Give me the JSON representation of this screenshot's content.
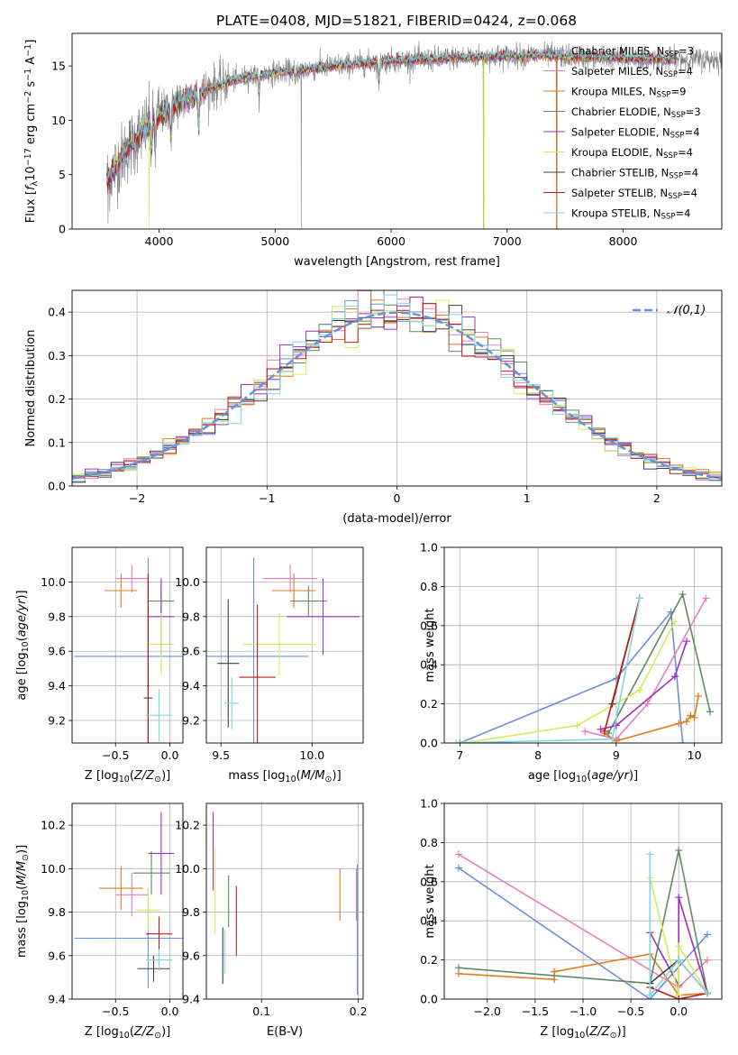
{
  "figure_title": "PLATE=0408, MJD=51821, FIBERID=0424, z=0.068",
  "colors": {
    "Chabrier MILES": "#6a8fdc",
    "Salpeter MILES": "#e87ec0",
    "Kroupa MILES": "#e07b20",
    "Chabrier ELODIE": "#5f8a62",
    "Salpeter ELODIE": "#9b30c0",
    "Kroupa ELODIE": "#d3ec5a",
    "Chabrier STELIB": "#404040",
    "Salpeter STELIB": "#c01818",
    "Kroupa STELIB": "#7ed8e0",
    "data": "#808080",
    "gaussian": "#6a8fdc",
    "grid": "#b0b0b0"
  },
  "chart_data": [
    {
      "id": "spectrum",
      "type": "line",
      "title": "PLATE=0408, MJD=51821, FIBERID=0424, z=0.068",
      "xlabel": "wavelength [Angstrom, rest frame]",
      "ylabel": "Flux [f_λ 10^-17 erg cm^-2 s^-1 A^-1]",
      "xlim": [
        3250,
        8850
      ],
      "ylim": [
        0,
        18
      ],
      "xticks": [
        4000,
        5000,
        6000,
        7000,
        8000
      ],
      "yticks": [
        0,
        5,
        10,
        15
      ],
      "grid": false,
      "legend_position": "lower right",
      "legend": [
        {
          "model": "Chabrier MILES",
          "label": "Chabrier MILES, N",
          "sub": "SSP",
          "suffix": "=3"
        },
        {
          "model": "Salpeter MILES",
          "label": "Salpeter MILES, N",
          "sub": "SSP",
          "suffix": "=4"
        },
        {
          "model": "Kroupa MILES",
          "label": "Kroupa MILES, N",
          "sub": "SSP",
          "suffix": "=9"
        },
        {
          "model": "Chabrier ELODIE",
          "label": "Chabrier ELODIE, N",
          "sub": "SSP",
          "suffix": "=3"
        },
        {
          "model": "Salpeter ELODIE",
          "label": "Salpeter ELODIE, N",
          "sub": "SSP",
          "suffix": "=4"
        },
        {
          "model": "Kroupa ELODIE",
          "label": "Kroupa ELODIE, N",
          "sub": "SSP",
          "suffix": "=4"
        },
        {
          "model": "Chabrier STELIB",
          "label": "Chabrier STELIB, N",
          "sub": "SSP",
          "suffix": "=4"
        },
        {
          "model": "Salpeter STELIB",
          "label": "Salpeter STELIB, N",
          "sub": "SSP",
          "suffix": "=4"
        },
        {
          "model": "Kroupa STELIB",
          "label": "Kroupa STELIB, N",
          "sub": "SSP",
          "suffix": "=4"
        }
      ],
      "continuum": {
        "x": [
          3550,
          3700,
          3900,
          4000,
          4200,
          4400,
          4600,
          4800,
          5000,
          5200,
          5500,
          5800,
          6000,
          6300,
          6600,
          6900,
          7200,
          7500,
          7800,
          8100,
          8400,
          8700,
          8850
        ],
        "y": [
          4.5,
          7.0,
          9.5,
          10.5,
          11.8,
          12.8,
          13.6,
          14.1,
          14.4,
          14.6,
          15.0,
          15.3,
          15.5,
          15.6,
          15.8,
          15.9,
          16.0,
          15.9,
          15.8,
          15.7,
          15.6,
          15.6,
          15.6
        ]
      },
      "data_range": [
        3550,
        8850
      ],
      "model_range": [
        3550,
        8450
      ],
      "absorption": [
        {
          "x": 3934,
          "depth": 0.3
        },
        {
          "x": 3968,
          "depth": 0.25
        },
        {
          "x": 4102,
          "depth": 0.25
        },
        {
          "x": 4340,
          "depth": 0.2
        },
        {
          "x": 4861,
          "depth": 0.12
        },
        {
          "x": 5175,
          "depth": 0.06
        },
        {
          "x": 5895,
          "depth": 0.12
        }
      ],
      "data_spikes": [
        {
          "x": 5225,
          "y": 0
        },
        {
          "x": 6795,
          "y": 0
        },
        {
          "x": 7425,
          "y": 0
        },
        {
          "x": 3560,
          "y": 0.5
        }
      ],
      "model_spikes": [
        {
          "model": "Kroupa ELODIE",
          "x": 3915,
          "y": 0
        },
        {
          "model": "Kroupa ELODIE",
          "x": 6800,
          "y": 0
        },
        {
          "model": "Kroupa MILES",
          "x": 7428,
          "y": 0
        }
      ]
    },
    {
      "id": "residuals",
      "type": "histogram",
      "xlabel": "(data-model)/error",
      "ylabel": "Normed distribution",
      "xlim": [
        -2.5,
        2.5
      ],
      "ylim": [
        0,
        0.45
      ],
      "xticks": [
        -2,
        -1,
        0,
        1,
        2
      ],
      "yticks": [
        0.0,
        0.1,
        0.2,
        0.3,
        0.4
      ],
      "grid": true,
      "legend": [
        {
          "label": "𝒩(0,1)",
          "style": "dashed"
        }
      ],
      "legend_position": "upper right",
      "bin_start": -2.5,
      "bin_width": 0.1
    },
    {
      "id": "Z_vs_age",
      "type": "errorbar",
      "xlabel": "Z [log10(Z/Z☉)]",
      "ylabel": "age [log10(age/yr)]",
      "xlim": [
        -0.9,
        0.12
      ],
      "ylim": [
        9.07,
        10.2
      ],
      "xticks": [
        -0.5,
        0.0
      ],
      "yticks": [
        9.2,
        9.4,
        9.6,
        9.8,
        10.0
      ],
      "grid": true,
      "points": [
        {
          "model": "Chabrier MILES",
          "x": -0.2,
          "xerr": 0.68,
          "y": 9.57,
          "yerr": 0.57
        },
        {
          "model": "Salpeter MILES",
          "x": -0.35,
          "xerr": 0.15,
          "y": 10.02,
          "yerr": 0.08
        },
        {
          "model": "Kroupa MILES",
          "x": -0.45,
          "xerr": 0.15,
          "y": 9.95,
          "yerr": 0.1
        },
        {
          "model": "Chabrier ELODIE",
          "x": -0.08,
          "xerr": 0.12,
          "y": 9.89,
          "yerr": 0.09
        },
        {
          "model": "Salpeter ELODIE",
          "x": -0.08,
          "xerr": 0.12,
          "y": 9.8,
          "yerr": 0.22
        },
        {
          "model": "Kroupa ELODIE",
          "x": -0.08,
          "xerr": 0.12,
          "y": 9.64,
          "yerr": 0.18
        },
        {
          "model": "Chabrier STELIB",
          "x": -0.2,
          "xerr": 0.04,
          "y": 9.33,
          "yerr": 0.7
        },
        {
          "model": "Salpeter STELIB",
          "x": -0.2,
          "xerr": 0.01,
          "y": 9.4,
          "yerr": 0.65
        },
        {
          "model": "Kroupa STELIB",
          "x": -0.1,
          "xerr": 0.12,
          "y": 9.23,
          "yerr": 0.15
        }
      ]
    },
    {
      "id": "mass_vs_age",
      "type": "errorbar",
      "xlabel": "mass [log10(M/M☉)]",
      "ylabel": "",
      "xlim": [
        9.42,
        10.28
      ],
      "ylim": [
        9.07,
        10.2
      ],
      "xticks": [
        9.5,
        10.0
      ],
      "yticks": [
        9.2,
        9.4,
        9.6,
        9.8,
        10.0
      ],
      "grid": true,
      "points": [
        {
          "model": "Chabrier MILES",
          "x": 9.68,
          "xerr": 0.3,
          "y": 9.57,
          "yerr": 0.57
        },
        {
          "model": "Salpeter MILES",
          "x": 9.88,
          "xerr": 0.15,
          "y": 10.02,
          "yerr": 0.08
        },
        {
          "model": "Kroupa MILES",
          "x": 9.9,
          "xerr": 0.12,
          "y": 9.95,
          "yerr": 0.1
        },
        {
          "model": "Chabrier ELODIE",
          "x": 9.98,
          "xerr": 0.1,
          "y": 9.89,
          "yerr": 0.09
        },
        {
          "model": "Salpeter ELODIE",
          "x": 10.06,
          "xerr": 0.2,
          "y": 9.8,
          "yerr": 0.22
        },
        {
          "model": "Kroupa ELODIE",
          "x": 9.82,
          "xerr": 0.2,
          "y": 9.64,
          "yerr": 0.18
        },
        {
          "model": "Chabrier STELIB",
          "x": 9.54,
          "xerr": 0.06,
          "y": 9.53,
          "yerr": 0.37
        },
        {
          "model": "Salpeter STELIB",
          "x": 9.7,
          "xerr": 0.1,
          "y": 9.45,
          "yerr": 0.42
        },
        {
          "model": "Kroupa STELIB",
          "x": 9.56,
          "xerr": 0.04,
          "y": 9.3,
          "yerr": 0.15
        }
      ]
    },
    {
      "id": "age_vs_weight",
      "type": "line",
      "xlabel": "age [log10(age/yr)]",
      "ylabel": "mass weight",
      "xlim": [
        6.8,
        10.35
      ],
      "ylim": [
        0,
        1
      ],
      "xticks": [
        7,
        8,
        9,
        10
      ],
      "yticks": [
        0.0,
        0.2,
        0.4,
        0.6,
        0.8,
        1.0
      ],
      "grid": true,
      "series": [
        {
          "model": "Chabrier MILES",
          "x": [
            7.0,
            9.0,
            9.7,
            9.85
          ],
          "y": [
            0.0,
            0.33,
            0.67,
            0.0
          ]
        },
        {
          "model": "Salpeter MILES",
          "x": [
            8.6,
            9.0,
            9.4,
            10.15
          ],
          "y": [
            0.06,
            0.02,
            0.2,
            0.74
          ]
        },
        {
          "model": "Kroupa MILES",
          "x": [
            8.85,
            9.0,
            9.8,
            9.9,
            9.95,
            10.0,
            10.05
          ],
          "y": [
            0.05,
            0.01,
            0.1,
            0.11,
            0.14,
            0.13,
            0.24
          ]
        },
        {
          "model": "Chabrier ELODIE",
          "x": [
            8.9,
            9.85,
            10.2
          ],
          "y": [
            0.05,
            0.76,
            0.16
          ]
        },
        {
          "model": "Salpeter ELODIE",
          "x": [
            8.8,
            9.0,
            9.75,
            9.9
          ],
          "y": [
            0.07,
            0.09,
            0.34,
            0.52
          ]
        },
        {
          "model": "Kroupa ELODIE",
          "x": [
            7.05,
            8.5,
            9.3,
            9.75
          ],
          "y": [
            0.0,
            0.09,
            0.27,
            0.62
          ]
        },
        {
          "model": "Chabrier STELIB",
          "x": [
            8.95,
            9.3
          ],
          "y": [
            0.2,
            0.74
          ]
        },
        {
          "model": "Salpeter STELIB",
          "x": [
            8.85,
            9.3
          ],
          "y": [
            0.06,
            0.74
          ]
        },
        {
          "model": "Kroupa STELIB",
          "x": [
            6.95,
            8.95,
            9.3
          ],
          "y": [
            0.0,
            0.02,
            0.74
          ]
        }
      ]
    },
    {
      "id": "Z_vs_mass",
      "type": "errorbar",
      "xlabel": "Z [log10(Z/Z☉)]",
      "ylabel": "mass [log10(M/M☉)]",
      "xlim": [
        -0.9,
        0.12
      ],
      "ylim": [
        9.4,
        10.3
      ],
      "xticks": [
        -0.5,
        0.0
      ],
      "yticks": [
        9.4,
        9.6,
        9.8,
        10.0,
        10.2
      ],
      "grid": true,
      "points": [
        {
          "model": "Chabrier MILES",
          "x": -0.2,
          "xerr": 0.68,
          "y": 9.68,
          "yerr": 0.23
        },
        {
          "model": "Salpeter MILES",
          "x": -0.35,
          "xerr": 0.15,
          "y": 9.88,
          "yerr": 0.1
        },
        {
          "model": "Kroupa MILES",
          "x": -0.45,
          "xerr": 0.2,
          "y": 9.91,
          "yerr": 0.1
        },
        {
          "model": "Chabrier ELODIE",
          "x": -0.17,
          "xerr": 0.17,
          "y": 9.98,
          "yerr": 0.1
        },
        {
          "model": "Salpeter ELODIE",
          "x": -0.08,
          "xerr": 0.12,
          "y": 10.07,
          "yerr": 0.19
        },
        {
          "model": "Kroupa ELODIE",
          "x": -0.2,
          "xerr": 0.12,
          "y": 9.81,
          "yerr": 0.1
        },
        {
          "model": "Chabrier STELIB",
          "x": -0.15,
          "xerr": 0.15,
          "y": 9.54,
          "yerr": 0.06
        },
        {
          "model": "Salpeter STELIB",
          "x": -0.1,
          "xerr": 0.12,
          "y": 9.7,
          "yerr": 0.08
        },
        {
          "model": "Kroupa STELIB",
          "x": -0.1,
          "xerr": 0.12,
          "y": 9.58,
          "yerr": 0.05
        }
      ]
    },
    {
      "id": "ebv_vs_mass",
      "type": "errorbar",
      "xlabel": "E(B-V)",
      "ylabel": "",
      "xlim": [
        0.043,
        0.205
      ],
      "ylim": [
        9.4,
        10.3
      ],
      "xticks": [
        0.1,
        0.2
      ],
      "yticks": [
        9.4,
        9.6,
        9.8,
        10.0,
        10.2
      ],
      "grid": true,
      "points": [
        {
          "model": "Chabrier MILES",
          "x": 0.199,
          "xerr": 0.0,
          "y": 9.72,
          "yerr": 0.3
        },
        {
          "model": "Salpeter MILES",
          "x": 0.198,
          "xerr": 0.0,
          "y": 9.88,
          "yerr": 0.12
        },
        {
          "model": "Kroupa MILES",
          "x": 0.181,
          "xerr": 0.0,
          "y": 9.88,
          "yerr": 0.12
        },
        {
          "model": "Chabrier ELODIE",
          "x": 0.066,
          "xerr": 0.0,
          "y": 9.85,
          "yerr": 0.12
        },
        {
          "model": "Salpeter ELODIE",
          "x": 0.05,
          "xerr": 0.0,
          "y": 10.08,
          "yerr": 0.18
        },
        {
          "model": "Kroupa ELODIE",
          "x": 0.052,
          "xerr": 0.0,
          "y": 9.9,
          "yerr": 0.2
        },
        {
          "model": "Chabrier STELIB",
          "x": 0.06,
          "xerr": 0.0,
          "y": 9.6,
          "yerr": 0.13
        },
        {
          "model": "Salpeter STELIB",
          "x": 0.074,
          "xerr": 0.0,
          "y": 9.76,
          "yerr": 0.16
        },
        {
          "model": "Kroupa STELIB",
          "x": 0.062,
          "xerr": 0.0,
          "y": 9.62,
          "yerr": 0.1
        }
      ]
    },
    {
      "id": "Z_vs_weight",
      "type": "line",
      "xlabel": "Z [log10(Z/Z☉)]",
      "ylabel": "mass weight",
      "xlim": [
        -2.45,
        0.45
      ],
      "ylim": [
        0,
        1
      ],
      "xticks": [
        -2.0,
        -1.5,
        -1.0,
        -0.5,
        0.0
      ],
      "yticks": [
        0.0,
        0.2,
        0.4,
        0.6,
        0.8,
        1.0
      ],
      "grid": true,
      "series": [
        {
          "model": "Chabrier MILES",
          "x": [
            -2.3,
            -0.3,
            0.3
          ],
          "y": [
            0.67,
            0.0,
            0.33
          ]
        },
        {
          "model": "Salpeter MILES",
          "x": [
            -2.3,
            0.0,
            0.3
          ],
          "y": [
            0.74,
            0.06,
            0.2
          ]
        },
        {
          "model": "Kroupa MILES",
          "x": [
            -2.3,
            -1.3,
            -1.3,
            -0.3,
            0.0,
            0.3
          ],
          "y": [
            0.13,
            0.1,
            0.14,
            0.23,
            0.02,
            0.03
          ]
        },
        {
          "model": "Chabrier ELODIE",
          "x": [
            -2.3,
            -0.3,
            0.0,
            0.3
          ],
          "y": [
            0.16,
            0.08,
            0.76,
            0.03
          ]
        },
        {
          "model": "Salpeter ELODIE",
          "x": [
            -0.3,
            0.0,
            0.0,
            0.3
          ],
          "y": [
            0.34,
            0.07,
            0.52,
            0.03
          ]
        },
        {
          "model": "Kroupa ELODIE",
          "x": [
            -0.3,
            0.0,
            0.0,
            0.3
          ],
          "y": [
            0.62,
            0.02,
            0.27,
            0.03
          ]
        },
        {
          "model": "Chabrier STELIB",
          "x": [
            -0.3,
            0.0,
            0.3
          ],
          "y": [
            0.08,
            0.2,
            0.03
          ]
        },
        {
          "model": "Salpeter STELIB",
          "x": [
            -0.3,
            0.0,
            0.3
          ],
          "y": [
            0.06,
            0.0,
            0.03
          ]
        },
        {
          "model": "Kroupa STELIB",
          "x": [
            -0.3,
            -0.3,
            0.0,
            0.3
          ],
          "y": [
            0.74,
            0.02,
            0.2,
            0.03
          ]
        }
      ]
    }
  ]
}
